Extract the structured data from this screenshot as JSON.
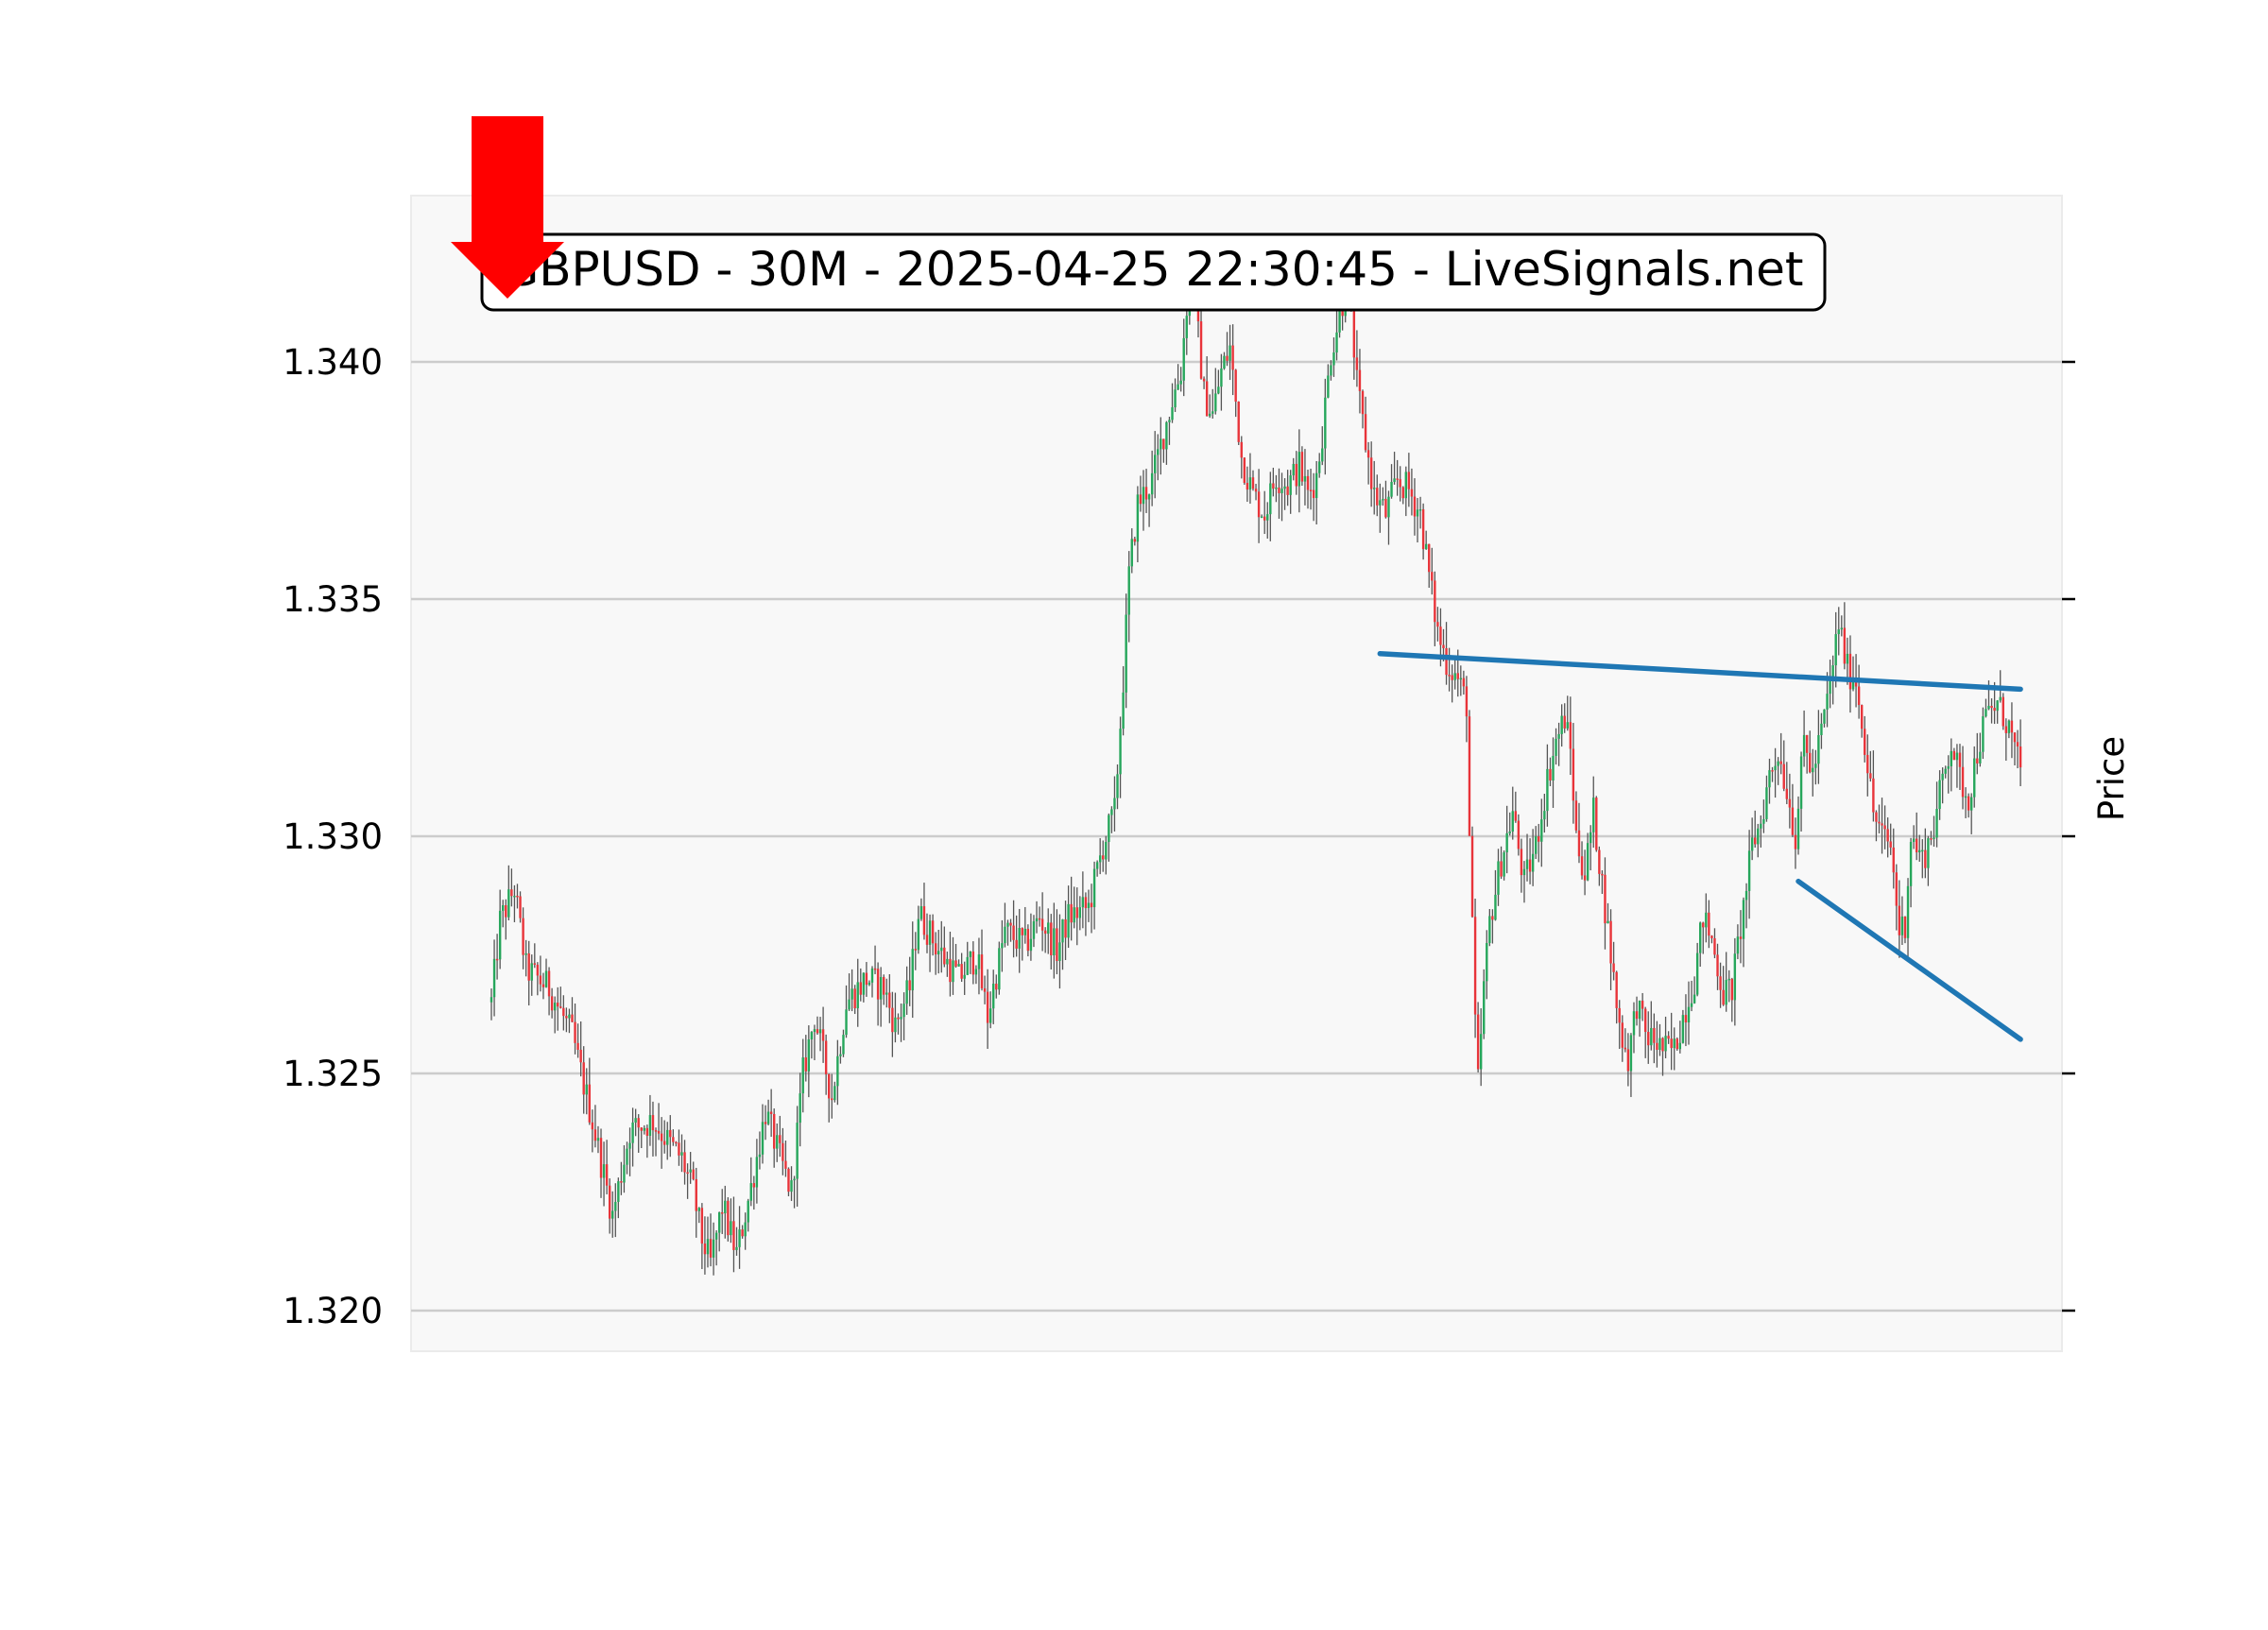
{
  "chart_data": {
    "type": "candlestick",
    "title": "GBPUSD - 30M - 2025-04-25 22:30:45 - LiveSignals.net",
    "ylabel": "Price",
    "xlabel": "",
    "ylim": [
      1.31915,
      1.34355
    ],
    "yticks": [
      "1.320",
      "1.325",
      "1.330",
      "1.335",
      "1.340"
    ],
    "ytick_values": [
      1.32,
      1.325,
      1.33,
      1.335,
      1.34
    ],
    "grid": true,
    "signal": "sell-arrow",
    "colors": {
      "up": "#26a65b",
      "down": "#e8343a",
      "wick": "#555555",
      "trendline": "#1f77b4",
      "arrow": "#ff0000",
      "plot_bg": "#f8f8f8",
      "grid": "#cccccc"
    },
    "candle_count": 336,
    "close_path": [
      [
        0,
        1.3265
      ],
      [
        3,
        1.3282
      ],
      [
        8,
        1.3289
      ],
      [
        12,
        1.3272
      ],
      [
        20,
        1.3268
      ],
      [
        28,
        1.3258
      ],
      [
        35,
        1.324
      ],
      [
        42,
        1.322
      ],
      [
        48,
        1.3238
      ],
      [
        56,
        1.324
      ],
      [
        62,
        1.3235
      ],
      [
        66,
        1.3232
      ],
      [
        70,
        1.3225
      ],
      [
        73,
        1.3215
      ],
      [
        76,
        1.321
      ],
      [
        80,
        1.3222
      ],
      [
        85,
        1.3212
      ],
      [
        90,
        1.3226
      ],
      [
        95,
        1.3242
      ],
      [
        100,
        1.3232
      ],
      [
        104,
        1.3225
      ],
      [
        108,
        1.325
      ],
      [
        112,
        1.3262
      ],
      [
        118,
        1.3245
      ],
      [
        123,
        1.3265
      ],
      [
        130,
        1.327
      ],
      [
        136,
        1.3268
      ],
      [
        140,
        1.326
      ],
      [
        145,
        1.3268
      ],
      [
        148,
        1.3284
      ],
      [
        155,
        1.3276
      ],
      [
        162,
        1.327
      ],
      [
        168,
        1.3275
      ],
      [
        172,
        1.3262
      ],
      [
        178,
        1.328
      ],
      [
        185,
        1.3277
      ],
      [
        190,
        1.3283
      ],
      [
        196,
        1.3276
      ],
      [
        200,
        1.3283
      ],
      [
        207,
        1.3285
      ],
      [
        212,
        1.3298
      ],
      [
        216,
        1.3305
      ],
      [
        219,
        1.3333
      ],
      [
        221,
        1.3355
      ],
      [
        224,
        1.337
      ],
      [
        226,
        1.3372
      ],
      [
        229,
        1.3375
      ],
      [
        233,
        1.3385
      ],
      [
        236,
        1.3392
      ],
      [
        239,
        1.3398
      ],
      [
        241,
        1.3412
      ],
      [
        243,
        1.3418
      ],
      [
        247,
        1.3393
      ],
      [
        250,
        1.3389
      ],
      [
        253,
        1.3398
      ],
      [
        256,
        1.3403
      ],
      [
        260,
        1.338
      ],
      [
        264,
        1.3372
      ],
      [
        268,
        1.3368
      ],
      [
        272,
        1.3376
      ],
      [
        276,
        1.3374
      ],
      [
        280,
        1.3378
      ],
      [
        283,
        1.3372
      ],
      [
        286,
        1.3376
      ],
      [
        288,
        1.3385
      ],
      [
        291,
        1.3402
      ],
      [
        294,
        1.341
      ],
      [
        297,
        1.3418
      ],
      [
        300,
        1.3395
      ],
      [
        303,
        1.3383
      ],
      [
        306,
        1.3372
      ],
      [
        310,
        1.3368
      ],
      [
        314,
        1.3375
      ],
      [
        318,
        1.3373
      ],
      [
        322,
        1.3368
      ],
      [
        325,
        1.3355
      ],
      [
        328,
        1.3343
      ],
      [
        331,
        1.3337
      ],
      [
        335,
        1.3333
      ],
      [
        338,
        1.3328
      ],
      [
        339,
        1.33
      ],
      [
        341,
        1.326
      ],
      [
        342,
        1.3248
      ],
      [
        344,
        1.3268
      ],
      [
        346,
        1.3282
      ],
      [
        350,
        1.3295
      ],
      [
        354,
        1.3305
      ],
      [
        358,
        1.329
      ],
      [
        362,
        1.3298
      ],
      [
        366,
        1.3312
      ],
      [
        369,
        1.332
      ],
      [
        372,
        1.3325
      ],
      [
        374,
        1.3318
      ],
      [
        376,
        1.33
      ],
      [
        379,
        1.3292
      ],
      [
        382,
        1.3305
      ],
      [
        385,
        1.329
      ],
      [
        388,
        1.3275
      ],
      [
        391,
        1.326
      ],
      [
        394,
        1.3253
      ],
      [
        397,
        1.3265
      ],
      [
        400,
        1.3258
      ],
      [
        403,
        1.3257
      ],
      [
        406,
        1.3255
      ],
      [
        410,
        1.3255
      ],
      [
        413,
        1.3262
      ],
      [
        417,
        1.327
      ],
      [
        420,
        1.3283
      ],
      [
        423,
        1.3278
      ],
      [
        427,
        1.3267
      ],
      [
        430,
        1.3268
      ],
      [
        434,
        1.3285
      ],
      [
        437,
        1.3298
      ],
      [
        440,
        1.3303
      ],
      [
        443,
        1.3313
      ],
      [
        446,
        1.3318
      ],
      [
        449,
        1.331
      ],
      [
        452,
        1.33
      ],
      [
        455,
        1.332
      ],
      [
        458,
        1.3313
      ],
      [
        461,
        1.3322
      ],
      [
        464,
        1.3332
      ],
      [
        467,
        1.3345
      ],
      [
        470,
        1.3335
      ],
      [
        473,
        1.3333
      ],
      [
        476,
        1.332
      ],
      [
        479,
        1.3305
      ],
      [
        482,
        1.33
      ],
      [
        485,
        1.3298
      ],
      [
        488,
        1.328
      ],
      [
        490,
        1.3282
      ],
      [
        492,
        1.33
      ],
      [
        496,
        1.3295
      ],
      [
        500,
        1.3302
      ],
      [
        503,
        1.3312
      ],
      [
        506,
        1.332
      ],
      [
        509,
        1.3312
      ],
      [
        512,
        1.3308
      ],
      [
        515,
        1.3318
      ],
      [
        518,
        1.3325
      ],
      [
        522,
        1.3328
      ],
      [
        526,
        1.3323
      ],
      [
        528,
        1.3318
      ],
      [
        530,
        1.3313
      ]
    ],
    "annotations": {
      "resistance_line": {
        "start": [
          308,
          1.33385
        ],
        "end": [
          530,
          1.3331
        ]
      },
      "support_line": {
        "start": [
          453,
          1.32905
        ],
        "end": [
          530,
          1.32572
        ]
      },
      "signal_arrow": {
        "direction": "down",
        "at_candle": 0
      }
    }
  }
}
